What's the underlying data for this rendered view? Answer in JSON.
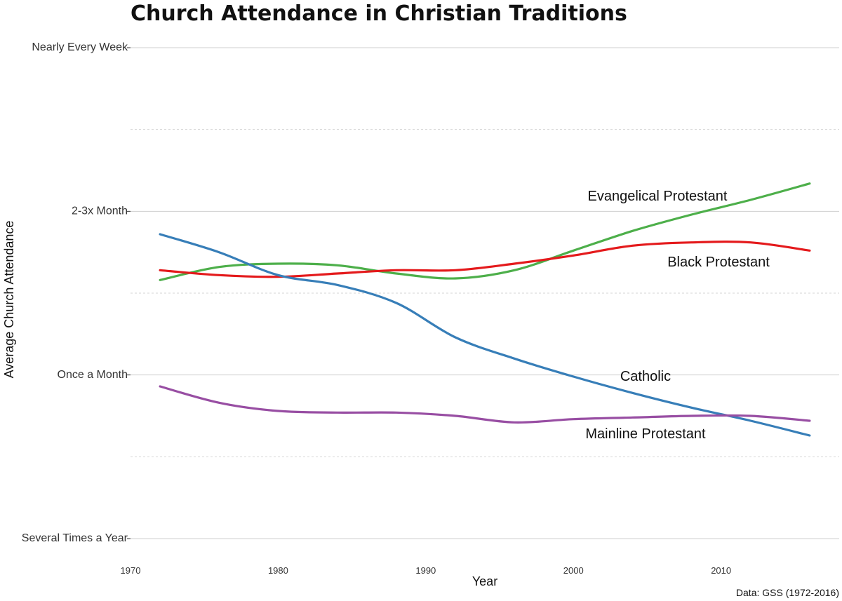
{
  "chart_data": {
    "type": "line",
    "title": "Church Attendance in Christian Traditions",
    "xlabel": "Year",
    "ylabel": "Average Church Attendance",
    "caption": "Data: GSS (1972-2016)",
    "xlim": [
      1970,
      2018
    ],
    "ylim": [
      3,
      6
    ],
    "x_ticks": [
      1970,
      1980,
      1990,
      2000,
      2010
    ],
    "y_ticks": [
      {
        "value": 6,
        "label": "Nearly Every Week"
      },
      {
        "value": 5,
        "label": "2-3x Month"
      },
      {
        "value": 4,
        "label": "Once a Month"
      },
      {
        "value": 3,
        "label": "Several Times a Year"
      }
    ],
    "y_minor_ticks": [
      5.5,
      4.5,
      3.5
    ],
    "grid": true,
    "legend": "direct labels on lines",
    "series": [
      {
        "name": "Evangelical Protestant",
        "color": "#4DAF4A",
        "x": [
          1972,
          1976,
          1980,
          1984,
          1988,
          1992,
          1996,
          2000,
          2004,
          2008,
          2012,
          2016
        ],
        "values": [
          4.58,
          4.66,
          4.68,
          4.67,
          4.62,
          4.59,
          4.64,
          4.76,
          4.88,
          4.98,
          5.07,
          5.17
        ]
      },
      {
        "name": "Black Protestant",
        "color": "#E41A1C",
        "x": [
          1972,
          1976,
          1980,
          1984,
          1988,
          1992,
          1996,
          2000,
          2004,
          2008,
          2012,
          2016
        ],
        "values": [
          4.64,
          4.61,
          4.6,
          4.62,
          4.64,
          4.64,
          4.68,
          4.73,
          4.79,
          4.81,
          4.81,
          4.76
        ]
      },
      {
        "name": "Catholic",
        "color": "#377EB8",
        "x": [
          1972,
          1976,
          1980,
          1984,
          1988,
          1992,
          1996,
          2000,
          2004,
          2008,
          2012,
          2016
        ],
        "values": [
          4.86,
          4.75,
          4.61,
          4.55,
          4.44,
          4.23,
          4.1,
          3.99,
          3.89,
          3.8,
          3.72,
          3.63
        ]
      },
      {
        "name": "Mainline Protestant",
        "color": "#984EA3",
        "x": [
          1972,
          1976,
          1980,
          1984,
          1988,
          1992,
          1996,
          2000,
          2004,
          2008,
          2012,
          2016
        ],
        "values": [
          3.93,
          3.83,
          3.78,
          3.77,
          3.77,
          3.75,
          3.71,
          3.73,
          3.74,
          3.75,
          3.75,
          3.72
        ]
      }
    ]
  }
}
